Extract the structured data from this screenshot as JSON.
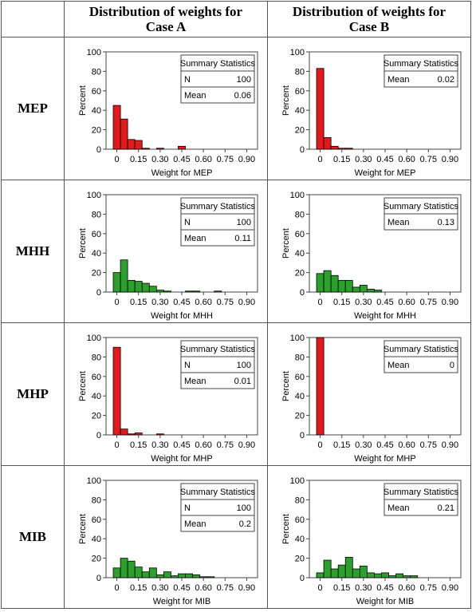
{
  "column_headers": [
    "Distribution of weights for\nCase A",
    "Distribution of weights for\nCase B"
  ],
  "row_labels": [
    "MEP",
    "MHH",
    "MHP",
    "MIB"
  ],
  "colors": {
    "red": "#e31a1c",
    "green": "#2ca02c"
  },
  "chart_data": [
    {
      "type": "bar",
      "title": "",
      "case": "A",
      "method": "MEP",
      "xlabel": "Weight for MEP",
      "ylabel": "Percent",
      "ylim": [
        0,
        100
      ],
      "xlim": [
        -0.075,
        0.975
      ],
      "bin_width": 0.05,
      "x_ticks": [
        "0",
        "0.15",
        "0.30",
        "0.45",
        "0.60",
        "0.75",
        "0.90"
      ],
      "y_ticks": [
        0,
        20,
        40,
        60,
        80,
        100
      ],
      "bar_color": "#e31a1c",
      "bins_start": [
        0,
        0.05,
        0.1,
        0.15,
        0.2,
        0.25,
        0.3,
        0.35,
        0.4,
        0.45,
        0.5,
        0.55,
        0.6,
        0.65,
        0.7,
        0.75,
        0.8,
        0.85,
        0.9
      ],
      "values": [
        45,
        31,
        10,
        9,
        1,
        0,
        1,
        0,
        0,
        3,
        0,
        0,
        0,
        0,
        0,
        0,
        0,
        0,
        0
      ],
      "legend_title": "Summary Statistics",
      "stats": [
        {
          "label": "N",
          "value": "100"
        },
        {
          "label": "Mean",
          "value": "0.06"
        }
      ]
    },
    {
      "type": "bar",
      "title": "",
      "case": "B",
      "method": "MEP",
      "xlabel": "Weight for MEP",
      "ylabel": "Percent",
      "ylim": [
        0,
        100
      ],
      "xlim": [
        -0.075,
        0.975
      ],
      "bin_width": 0.05,
      "x_ticks": [
        "0",
        "0.15",
        "0.30",
        "0.45",
        "0.60",
        "0.75",
        "0.90"
      ],
      "y_ticks": [
        0,
        20,
        40,
        60,
        80,
        100
      ],
      "bar_color": "#e31a1c",
      "bins_start": [
        0,
        0.05,
        0.1,
        0.15,
        0.2,
        0.25
      ],
      "values": [
        83,
        12,
        3,
        1,
        1,
        0
      ],
      "legend_title": "Summary Statistics",
      "stats": [
        {
          "label": "Mean",
          "value": "0.02"
        }
      ]
    },
    {
      "type": "bar",
      "title": "",
      "case": "A",
      "method": "MHH",
      "xlabel": "Weight for MHH",
      "ylabel": "Percent",
      "ylim": [
        0,
        100
      ],
      "xlim": [
        -0.075,
        0.975
      ],
      "bin_width": 0.05,
      "x_ticks": [
        "0",
        "0.15",
        "0.30",
        "0.45",
        "0.60",
        "0.75",
        "0.90"
      ],
      "y_ticks": [
        0,
        20,
        40,
        60,
        80,
        100
      ],
      "bar_color": "#2ca02c",
      "bins_start": [
        0,
        0.05,
        0.1,
        0.15,
        0.2,
        0.25,
        0.3,
        0.35,
        0.4,
        0.45,
        0.5,
        0.55,
        0.6,
        0.65,
        0.7
      ],
      "values": [
        20,
        33,
        12,
        11,
        9,
        6,
        2,
        1,
        0,
        0,
        1,
        1,
        0,
        0,
        1
      ],
      "legend_title": "Summary Statistics",
      "stats": [
        {
          "label": "N",
          "value": "100"
        },
        {
          "label": "Mean",
          "value": "0.11"
        }
      ]
    },
    {
      "type": "bar",
      "title": "",
      "case": "B",
      "method": "MHH",
      "xlabel": "Weight for MHH",
      "ylabel": "Percent",
      "ylim": [
        0,
        100
      ],
      "xlim": [
        -0.075,
        0.975
      ],
      "bin_width": 0.05,
      "x_ticks": [
        "0",
        "0.15",
        "0.30",
        "0.45",
        "0.60",
        "0.75",
        "0.90"
      ],
      "y_ticks": [
        0,
        20,
        40,
        60,
        80,
        100
      ],
      "bar_color": "#2ca02c",
      "bins_start": [
        0,
        0.05,
        0.1,
        0.15,
        0.2,
        0.25,
        0.3,
        0.35,
        0.4
      ],
      "values": [
        19,
        22,
        17,
        12,
        12,
        5,
        7,
        3,
        2
      ],
      "legend_title": "Summary Statistics",
      "stats": [
        {
          "label": "Mean",
          "value": "0.13"
        }
      ]
    },
    {
      "type": "bar",
      "title": "",
      "case": "A",
      "method": "MHP",
      "xlabel": "Weight for MHP",
      "ylabel": "Percent",
      "ylim": [
        0,
        100
      ],
      "xlim": [
        -0.075,
        0.975
      ],
      "bin_width": 0.05,
      "x_ticks": [
        "0",
        "0.15",
        "0.30",
        "0.45",
        "0.60",
        "0.75",
        "0.90"
      ],
      "y_ticks": [
        0,
        20,
        40,
        60,
        80,
        100
      ],
      "bar_color": "#e31a1c",
      "bins_start": [
        0,
        0.05,
        0.1,
        0.15,
        0.2,
        0.25,
        0.3
      ],
      "values": [
        90,
        6,
        1,
        2,
        0,
        0,
        1
      ],
      "legend_title": "Summary Statistics",
      "stats": [
        {
          "label": "N",
          "value": "100"
        },
        {
          "label": "Mean",
          "value": "0.01"
        }
      ]
    },
    {
      "type": "bar",
      "title": "",
      "case": "B",
      "method": "MHP",
      "xlabel": "Weight for MHP",
      "ylabel": "Percent",
      "ylim": [
        0,
        100
      ],
      "xlim": [
        -0.075,
        0.975
      ],
      "bin_width": 0.05,
      "x_ticks": [
        "0",
        "0.15",
        "0.30",
        "0.45",
        "0.60",
        "0.75",
        "0.90"
      ],
      "y_ticks": [
        0,
        20,
        40,
        60,
        80,
        100
      ],
      "bar_color": "#e31a1c",
      "bins_start": [
        0
      ],
      "values": [
        100
      ],
      "legend_title": "Summary Statistics",
      "stats": [
        {
          "label": "Mean",
          "value": "0"
        }
      ]
    },
    {
      "type": "bar",
      "title": "",
      "case": "A",
      "method": "MIB",
      "xlabel": "Weight for MIB",
      "ylabel": "Percent",
      "ylim": [
        0,
        100
      ],
      "xlim": [
        -0.075,
        0.975
      ],
      "bin_width": 0.05,
      "x_ticks": [
        "0",
        "0.15",
        "0.30",
        "0.45",
        "0.60",
        "0.75",
        "0.90"
      ],
      "y_ticks": [
        0,
        20,
        40,
        60,
        80,
        100
      ],
      "bar_color": "#2ca02c",
      "bins_start": [
        0,
        0.05,
        0.1,
        0.15,
        0.2,
        0.25,
        0.3,
        0.35,
        0.4,
        0.45,
        0.5,
        0.55,
        0.6,
        0.65
      ],
      "values": [
        10,
        20,
        17,
        11,
        6,
        10,
        3,
        6,
        2,
        4,
        4,
        3,
        1,
        1
      ],
      "legend_title": "Summary Statistics",
      "stats": [
        {
          "label": "N",
          "value": "100"
        },
        {
          "label": "Mean",
          "value": "0.2"
        }
      ]
    },
    {
      "type": "bar",
      "title": "",
      "case": "B",
      "method": "MIB",
      "xlabel": "Weight for MIB",
      "ylabel": "Percent",
      "ylim": [
        0,
        100
      ],
      "xlim": [
        -0.075,
        0.975
      ],
      "bin_width": 0.05,
      "x_ticks": [
        "0",
        "0.15",
        "0.30",
        "0.45",
        "0.60",
        "0.75",
        "0.90"
      ],
      "y_ticks": [
        0,
        20,
        40,
        60,
        80,
        100
      ],
      "bar_color": "#2ca02c",
      "bins_start": [
        0,
        0.05,
        0.1,
        0.15,
        0.2,
        0.25,
        0.3,
        0.35,
        0.4,
        0.45,
        0.5,
        0.55,
        0.6,
        0.65
      ],
      "values": [
        5,
        18,
        9,
        13,
        21,
        9,
        12,
        5,
        4,
        5,
        2,
        4,
        2,
        2
      ],
      "legend_title": "Summary Statistics",
      "stats": [
        {
          "label": "Mean",
          "value": "0.21"
        }
      ]
    }
  ]
}
